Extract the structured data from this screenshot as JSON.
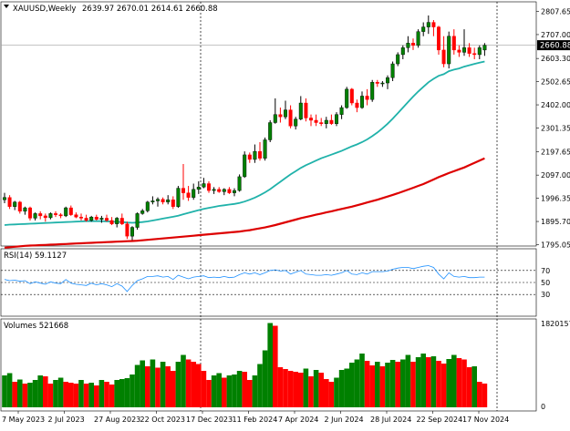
{
  "colors": {
    "bull": "#008000",
    "bear": "#ff0000",
    "bull_wick": "#000000",
    "ma_fast": "#20b2aa",
    "ma_slow": "#dd0000",
    "rsi": "#1e90ff",
    "grid": "#c0c0c0",
    "text": "#000000",
    "price_tag_bg": "#000000",
    "price_tag_fg": "#ffffff"
  },
  "main": {
    "symbol_label": "XAUUSD,Weekly",
    "ohlc_label": "2639.97 2670.01 2614.61 2660.88",
    "current_price_label": "2660.88",
    "y_ticks": [
      "2807.65",
      "2707.00",
      "2603.30",
      "2502.65",
      "2402.00",
      "2301.35",
      "2197.65",
      "2097.00",
      "1996.35",
      "1895.70",
      "1795.05"
    ]
  },
  "rsi_panel": {
    "label": "RSI(14) 59.1127",
    "levels": [
      "70",
      "50",
      "30"
    ]
  },
  "volume_panel": {
    "label": "Volumes 521668",
    "y_ticks": [
      "1820157",
      "0"
    ]
  },
  "x_ticks": [
    "7 May 2023",
    "2 Jul 2023",
    "27 Aug 2023",
    "22 Oct 2023",
    "17 Dec 2023",
    "11 Feb 2024",
    "7 Apr 2024",
    "2 Jun 2024",
    "28 Jul 2024",
    "22 Sep 2024",
    "17 Nov 2024"
  ],
  "chart_data": [
    {
      "type": "candlestick",
      "title": "XAUUSD,Weekly",
      "ylim": [
        1795.05,
        2807.65
      ],
      "series": [
        {
          "name": "price",
          "ohlc": [
            [
              1990,
              2020,
              1975,
              2000
            ],
            [
              2000,
              2010,
              1950,
              1960
            ],
            [
              1960,
              1985,
              1945,
              1980
            ],
            [
              1980,
              1985,
              1930,
              1940
            ],
            [
              1940,
              1960,
              1925,
              1955
            ],
            [
              1955,
              1960,
              1900,
              1910
            ],
            [
              1910,
              1935,
              1900,
              1930
            ],
            [
              1930,
              1940,
              1905,
              1920
            ],
            [
              1920,
              1930,
              1895,
              1912
            ],
            [
              1912,
              1935,
              1905,
              1930
            ],
            [
              1930,
              1940,
              1915,
              1925
            ],
            [
              1925,
              1932,
              1910,
              1920
            ],
            [
              1920,
              1960,
              1915,
              1955
            ],
            [
              1955,
              1965,
              1920,
              1925
            ],
            [
              1925,
              1935,
              1910,
              1915
            ],
            [
              1915,
              1930,
              1900,
              1910
            ],
            [
              1910,
              1925,
              1895,
              1900
            ],
            [
              1900,
              1920,
              1895,
              1915
            ],
            [
              1915,
              1925,
              1900,
              1905
            ],
            [
              1905,
              1920,
              1890,
              1910
            ],
            [
              1910,
              1925,
              1895,
              1900
            ],
            [
              1900,
              1915,
              1880,
              1885
            ],
            [
              1885,
              1915,
              1870,
              1910
            ],
            [
              1910,
              1930,
              1880,
              1885
            ],
            [
              1885,
              1895,
              1820,
              1832
            ],
            [
              1832,
              1875,
              1815,
              1870
            ],
            [
              1870,
              1935,
              1860,
              1930
            ],
            [
              1930,
              1950,
              1925,
              1942
            ],
            [
              1942,
              1985,
              1935,
              1980
            ],
            [
              1980,
              2005,
              1970,
              1985
            ],
            [
              1985,
              2000,
              1960,
              1992
            ],
            [
              1992,
              2000,
              1970,
              1980
            ],
            [
              1980,
              2010,
              1970,
              1990
            ],
            [
              1990,
              2005,
              1950,
              1960
            ],
            [
              1960,
              2050,
              1955,
              2040
            ],
            [
              2040,
              2145,
              1990,
              2020
            ],
            [
              2020,
              2050,
              1985,
              2000
            ],
            [
              2000,
              2060,
              1990,
              2035
            ],
            [
              2035,
              2070,
              2015,
              2045
            ],
            [
              2045,
              2085,
              2040,
              2060
            ],
            [
              2060,
              2070,
              2020,
              2030
            ],
            [
              2030,
              2045,
              2015,
              2035
            ],
            [
              2035,
              2045,
              2020,
              2025
            ],
            [
              2025,
              2040,
              2010,
              2035
            ],
            [
              2035,
              2045,
              2015,
              2020
            ],
            [
              2020,
              2040,
              2005,
              2030
            ],
            [
              2030,
              2100,
              2025,
              2090
            ],
            [
              2090,
              2200,
              2085,
              2185
            ],
            [
              2185,
              2195,
              2150,
              2165
            ],
            [
              2165,
              2230,
              2150,
              2200
            ],
            [
              2200,
              2240,
              2160,
              2170
            ],
            [
              2170,
              2260,
              2160,
              2250
            ],
            [
              2250,
              2335,
              2240,
              2325
            ],
            [
              2325,
              2430,
              2320,
              2360
            ],
            [
              2360,
              2390,
              2325,
              2350
            ],
            [
              2350,
              2420,
              2340,
              2380
            ],
            [
              2380,
              2400,
              2300,
              2310
            ],
            [
              2310,
              2350,
              2295,
              2340
            ],
            [
              2340,
              2440,
              2335,
              2410
            ],
            [
              2410,
              2430,
              2330,
              2345
            ],
            [
              2345,
              2360,
              2310,
              2335
            ],
            [
              2335,
              2360,
              2310,
              2325
            ],
            [
              2325,
              2345,
              2310,
              2320
            ],
            [
              2320,
              2350,
              2300,
              2335
            ],
            [
              2335,
              2360,
              2315,
              2320
            ],
            [
              2320,
              2370,
              2310,
              2360
            ],
            [
              2360,
              2400,
              2340,
              2390
            ],
            [
              2390,
              2480,
              2385,
              2470
            ],
            [
              2470,
              2475,
              2400,
              2410
            ],
            [
              2410,
              2425,
              2370,
              2390
            ],
            [
              2390,
              2460,
              2385,
              2440
            ],
            [
              2440,
              2470,
              2400,
              2425
            ],
            [
              2425,
              2510,
              2415,
              2500
            ],
            [
              2500,
              2510,
              2480,
              2495
            ],
            [
              2495,
              2505,
              2480,
              2497
            ],
            [
              2497,
              2530,
              2470,
              2520
            ],
            [
              2520,
              2590,
              2505,
              2580
            ],
            [
              2580,
              2630,
              2570,
              2620
            ],
            [
              2620,
              2660,
              2600,
              2650
            ],
            [
              2650,
              2700,
              2630,
              2670
            ],
            [
              2670,
              2690,
              2640,
              2660
            ],
            [
              2660,
              2730,
              2650,
              2720
            ],
            [
              2720,
              2760,
              2700,
              2740
            ],
            [
              2740,
              2790,
              2710,
              2760
            ],
            [
              2760,
              2770,
              2700,
              2740
            ],
            [
              2740,
              2745,
              2620,
              2640
            ],
            [
              2640,
              2700,
              2565,
              2580
            ],
            [
              2580,
              2720,
              2560,
              2700
            ],
            [
              2700,
              2730,
              2620,
              2640
            ],
            [
              2640,
              2660,
              2610,
              2630
            ],
            [
              2630,
              2730,
              2615,
              2650
            ],
            [
              2650,
              2670,
              2610,
              2625
            ],
            [
              2625,
              2650,
              2600,
              2620
            ],
            [
              2620,
              2660,
              2600,
              2650
            ],
            [
              2639.97,
              2670.01,
              2614.61,
              2660.88
            ]
          ]
        },
        {
          "name": "ma_fast",
          "values": [
            1880,
            1882,
            1883,
            1884,
            1885,
            1886,
            1887,
            1888,
            1889,
            1890,
            1891,
            1892,
            1893,
            1894,
            1895,
            1896,
            1897,
            1897,
            1897,
            1897,
            1896,
            1895,
            1894,
            1893,
            1891,
            1890,
            1891,
            1893,
            1896,
            1900,
            1904,
            1908,
            1912,
            1916,
            1921,
            1927,
            1933,
            1939,
            1945,
            1950,
            1955,
            1959,
            1963,
            1966,
            1969,
            1972,
            1976,
            1982,
            1990,
            1999,
            2010,
            2022,
            2036,
            2052,
            2068,
            2084,
            2100,
            2114,
            2128,
            2140,
            2150,
            2160,
            2170,
            2178,
            2186,
            2194,
            2202,
            2212,
            2222,
            2230,
            2240,
            2252,
            2266,
            2282,
            2300,
            2320,
            2342,
            2366,
            2390,
            2414,
            2438,
            2460,
            2480,
            2500,
            2515,
            2528,
            2535,
            2548,
            2555,
            2560,
            2568,
            2574,
            2580,
            2585,
            2590
          ]
        },
        {
          "name": "ma_slow",
          "values": [
            1782,
            1784,
            1786,
            1788,
            1790,
            1791,
            1792,
            1793,
            1794,
            1795,
            1796,
            1797,
            1798,
            1799,
            1800,
            1801,
            1802,
            1803,
            1804,
            1805,
            1806,
            1807,
            1808,
            1809,
            1810,
            1811,
            1812,
            1814,
            1816,
            1818,
            1820,
            1822,
            1824,
            1826,
            1828,
            1830,
            1832,
            1834,
            1836,
            1838,
            1840,
            1842,
            1844,
            1846,
            1848,
            1850,
            1852,
            1855,
            1858,
            1862,
            1866,
            1870,
            1875,
            1880,
            1886,
            1892,
            1898,
            1904,
            1910,
            1915,
            1920,
            1925,
            1930,
            1935,
            1940,
            1945,
            1950,
            1955,
            1960,
            1966,
            1972,
            1978,
            1984,
            1990,
            1997,
            2004,
            2011,
            2018,
            2026,
            2034,
            2042,
            2050,
            2058,
            2068,
            2078,
            2088,
            2097,
            2106,
            2114,
            2122,
            2130,
            2140,
            2150,
            2160,
            2170
          ]
        }
      ]
    },
    {
      "type": "line",
      "title": "RSI(14) 59.1127",
      "ylim": [
        0,
        100
      ],
      "levels": [
        70,
        50,
        30
      ],
      "values": [
        55,
        53,
        54,
        52,
        53,
        48,
        51,
        49,
        47,
        51,
        49,
        48,
        55,
        49,
        47,
        46,
        45,
        49,
        46,
        48,
        46,
        43,
        48,
        44,
        35,
        45,
        53,
        56,
        60,
        60,
        61,
        59,
        60,
        55,
        62,
        59,
        56,
        59,
        60,
        61,
        58,
        59,
        58,
        60,
        58,
        59,
        63,
        66,
        64,
        66,
        63,
        66,
        70,
        71,
        69,
        70,
        64,
        67,
        70,
        64,
        63,
        62,
        62,
        63,
        62,
        64,
        66,
        70,
        64,
        63,
        66,
        64,
        68,
        68,
        68,
        69,
        72,
        74,
        75,
        75,
        73,
        75,
        77,
        78,
        75,
        64,
        56,
        66,
        60,
        59,
        60,
        58,
        58,
        59,
        59
      ]
    },
    {
      "type": "bar",
      "title": "Volumes 521668",
      "ylim": [
        0,
        1820157
      ],
      "values": [
        700,
        750,
        560,
        610,
        520,
        540,
        600,
        700,
        680,
        520,
        600,
        650,
        560,
        540,
        520,
        600,
        520,
        540,
        480,
        600,
        560,
        500,
        600,
        620,
        640,
        720,
        930,
        1030,
        900,
        1050,
        870,
        1000,
        900,
        800,
        1000,
        1150,
        1050,
        1000,
        950,
        800,
        600,
        700,
        750,
        650,
        700,
        720,
        800,
        780,
        600,
        700,
        950,
        1250,
        1850,
        1790,
        880,
        840,
        800,
        780,
        760,
        850,
        680,
        820,
        760,
        620,
        560,
        650,
        820,
        850,
        980,
        1050,
        1180,
        1020,
        920,
        1000,
        900,
        980,
        1040,
        1000,
        1050,
        1150,
        1000,
        1100,
        1180,
        1100,
        1120,
        1020,
        960,
        1060,
        1150,
        1080,
        1050,
        880,
        900,
        560,
        521.668
      ]
    }
  ]
}
